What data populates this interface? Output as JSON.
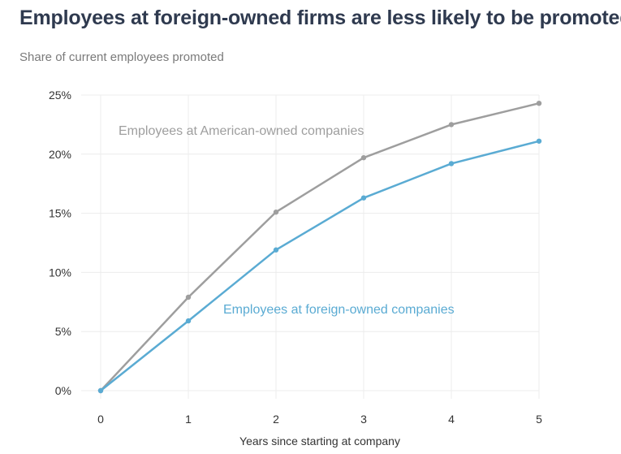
{
  "header": {
    "title": "Employees at foreign-owned firms are less likely to be promoted",
    "subtitle": "Share of current employees promoted"
  },
  "chart_data": {
    "type": "line",
    "title": "Employees at foreign-owned firms are less likely to be promoted",
    "subtitle": "Share of current employees promoted",
    "xlabel": "Years since starting at company",
    "ylabel": "",
    "x": [
      0,
      1,
      2,
      3,
      4,
      5
    ],
    "xlim": [
      0,
      5
    ],
    "ylim": [
      0,
      25
    ],
    "x_ticks": [
      "0",
      "1",
      "2",
      "3",
      "4",
      "5"
    ],
    "y_ticks": [
      "0%",
      "5%",
      "10%",
      "15%",
      "20%",
      "25%"
    ],
    "grid": true,
    "legend": "direct labels",
    "series": [
      {
        "name": "Employees at American-owned companies",
        "values": [
          0,
          7.9,
          15.1,
          19.7,
          22.5,
          24.3
        ],
        "color": "#9e9e9e"
      },
      {
        "name": "Employees at foreign-owned companies",
        "values": [
          0,
          5.9,
          11.9,
          16.3,
          19.2,
          21.1
        ],
        "color": "#5aabd3"
      }
    ]
  }
}
